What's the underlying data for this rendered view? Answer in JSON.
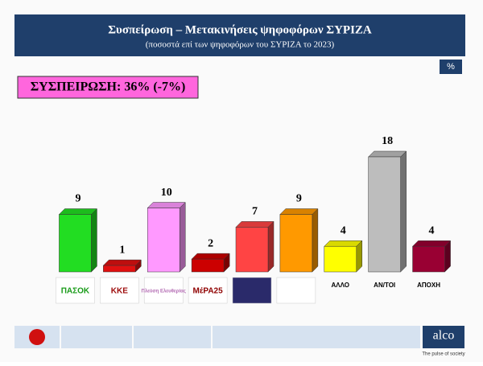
{
  "chart_data": {
    "type": "bar3d",
    "title": "Συσπείρωση – Μετακινήσεις ψηφοφόρων ΣΥΡΙΖΑ",
    "subtitle": "(ποσοστά επί των ψηφοφόρων του ΣΥΡΙΖΑ το 2023)",
    "unit_badge": "%",
    "highlight": "ΣΥΣΠΕΙΡΩΣΗ: 36% (-7%)",
    "categories": [
      "ΠΑΣΟΚ",
      "ΚΚΕ",
      "Πλεύση Ελευθερίας",
      "ΜέΡΑ25",
      null,
      null,
      "ΑΛΛΟ",
      "ΑΝ/ΤΟΙ",
      "ΑΠΟΧΗ"
    ],
    "values": [
      9,
      1,
      10,
      2,
      7,
      9,
      4,
      18,
      4
    ],
    "colors": [
      "#22dd22",
      "#e01010",
      "#ff99ff",
      "#cc0000",
      "#ff4444",
      "#ff9900",
      "#ffff00",
      "#bdbdbd",
      "#990033"
    ],
    "brand": "alco",
    "tagline": "The pulse of society"
  }
}
